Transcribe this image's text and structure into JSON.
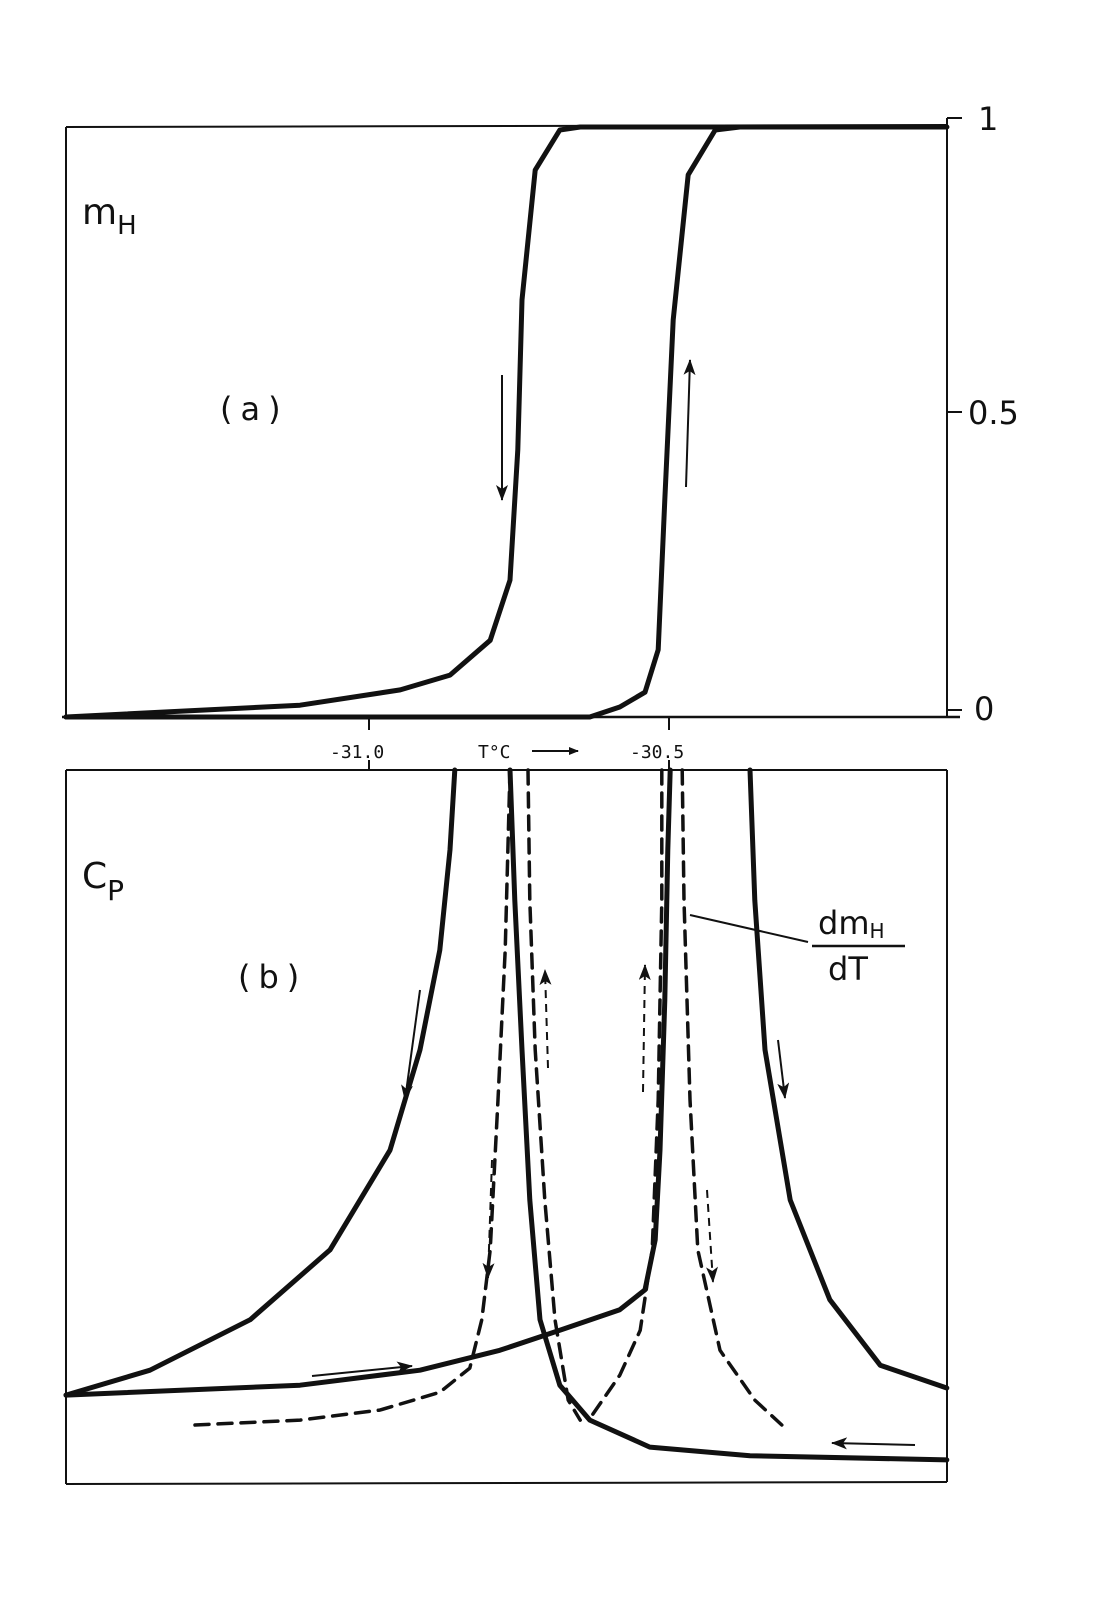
{
  "chart_data": [
    {
      "panel_label": "(a)",
      "type": "line",
      "ylabel": "m",
      "ylabel_sub": "H",
      "xlabel": "T°C",
      "xticks": [
        "-31.0",
        "-30.5"
      ],
      "xlim": [
        -31.505,
        -30.037
      ],
      "ylim": [
        0,
        1
      ],
      "yticks": [
        "1",
        "0.5",
        "0"
      ],
      "grid": false,
      "series": [
        {
          "id": "cooling",
          "style": "solid",
          "direction": "down",
          "points": [
            [
              -31.505,
              0
            ],
            [
              -31.115,
              0.02
            ],
            [
              -30.948,
              0.046
            ],
            [
              -30.865,
              0.071
            ],
            [
              -30.798,
              0.13
            ],
            [
              -30.765,
              0.232
            ],
            [
              -30.752,
              0.453
            ],
            [
              -30.745,
              0.707
            ],
            [
              -30.723,
              0.927
            ],
            [
              -30.682,
              0.995
            ],
            [
              -30.648,
              1
            ],
            [
              -30.037,
              1
            ]
          ]
        },
        {
          "id": "heating",
          "style": "solid",
          "direction": "up",
          "points": [
            [
              -31.505,
              0
            ],
            [
              -30.632,
              0
            ],
            [
              -30.582,
              0.017
            ],
            [
              -30.54,
              0.042
            ],
            [
              -30.518,
              0.114
            ],
            [
              -30.507,
              0.368
            ],
            [
              -30.493,
              0.673
            ],
            [
              -30.468,
              0.919
            ],
            [
              -30.423,
              0.995
            ],
            [
              -30.382,
              1
            ],
            [
              -30.037,
              1
            ]
          ]
        }
      ]
    },
    {
      "panel_label": "(b)",
      "type": "line",
      "ylabel": "C",
      "ylabel_sub": "P",
      "xlim": [
        -31.505,
        -30.037
      ],
      "ylim": [
        0,
        1
      ],
      "grid": false,
      "annotation": {
        "numerator": "dm",
        "numerator_sub": "H",
        "denominator": "dT"
      },
      "series": [
        {
          "id": "cp-heating-1",
          "style": "solid",
          "points": [
            [
              -31.505,
              0.122
            ],
            [
              -31.365,
              0.157
            ],
            [
              -31.198,
              0.228
            ],
            [
              -31.065,
              0.326
            ],
            [
              -30.965,
              0.466
            ],
            [
              -30.915,
              0.607
            ],
            [
              -30.882,
              0.747
            ],
            [
              -30.865,
              0.888
            ],
            [
              -30.857,
              1
            ]
          ]
        },
        {
          "id": "cp-heating-2",
          "style": "solid",
          "points": [
            [
              -31.505,
              0.122
            ],
            [
              -31.115,
              0.136
            ],
            [
              -30.915,
              0.157
            ],
            [
              -30.782,
              0.185
            ],
            [
              -30.682,
              0.213
            ],
            [
              -30.582,
              0.242
            ],
            [
              -30.54,
              0.27
            ],
            [
              -30.523,
              0.34
            ],
            [
              -30.515,
              0.466
            ],
            [
              -30.507,
              0.677
            ],
            [
              -30.502,
              0.888
            ],
            [
              -30.498,
              1
            ]
          ]
        },
        {
          "id": "cp-cooling-1",
          "style": "solid",
          "points": [
            [
              -30.765,
              1
            ],
            [
              -30.757,
              0.817
            ],
            [
              -30.745,
              0.607
            ],
            [
              -30.732,
              0.396
            ],
            [
              -30.715,
              0.228
            ],
            [
              -30.682,
              0.136
            ],
            [
              -30.632,
              0.087
            ],
            [
              -30.532,
              0.049
            ],
            [
              -30.365,
              0.037
            ],
            [
              -30.037,
              0.031
            ]
          ]
        },
        {
          "id": "cp-cooling-2",
          "style": "solid",
          "points": [
            [
              -30.365,
              1
            ],
            [
              -30.357,
              0.817
            ],
            [
              -30.34,
              0.607
            ],
            [
              -30.298,
              0.396
            ],
            [
              -30.232,
              0.256
            ],
            [
              -30.148,
              0.164
            ],
            [
              -30.037,
              0.132
            ]
          ]
        },
        {
          "id": "dmdt-1",
          "style": "dashed",
          "points": [
            [
              -31.29,
              0.08
            ],
            [
              -31.115,
              0.087
            ],
            [
              -30.982,
              0.101
            ],
            [
              -30.882,
              0.126
            ],
            [
              -30.832,
              0.16
            ],
            [
              -30.812,
              0.228
            ],
            [
              -30.798,
              0.326
            ],
            [
              -30.785,
              0.537
            ],
            [
              -30.773,
              0.747
            ],
            [
              -30.765,
              1
            ]
          ]
        },
        {
          "id": "dmdt-2",
          "style": "dashed",
          "points": [
            [
              -30.735,
              1
            ],
            [
              -30.732,
              0.817
            ],
            [
              -30.723,
              0.607
            ],
            [
              -30.707,
              0.396
            ],
            [
              -30.69,
              0.228
            ],
            [
              -30.668,
              0.115
            ],
            [
              -30.648,
              0.087
            ]
          ]
        },
        {
          "id": "dmdt-3",
          "style": "dashed",
          "points": [
            [
              -30.512,
              1
            ],
            [
              -30.512,
              0.817
            ],
            [
              -30.518,
              0.537
            ],
            [
              -30.528,
              0.326
            ],
            [
              -30.548,
              0.213
            ],
            [
              -30.582,
              0.15
            ],
            [
              -30.628,
              0.094
            ]
          ]
        },
        {
          "id": "dmdt-4",
          "style": "dashed",
          "points": [
            [
              -30.478,
              1
            ],
            [
              -30.475,
              0.817
            ],
            [
              -30.465,
              0.537
            ],
            [
              -30.452,
              0.326
            ],
            [
              -30.415,
              0.185
            ],
            [
              -30.357,
              0.115
            ],
            [
              -30.312,
              0.08
            ]
          ]
        }
      ]
    }
  ],
  "colors": {
    "ink": "#111111",
    "paper": "#ffffff"
  }
}
